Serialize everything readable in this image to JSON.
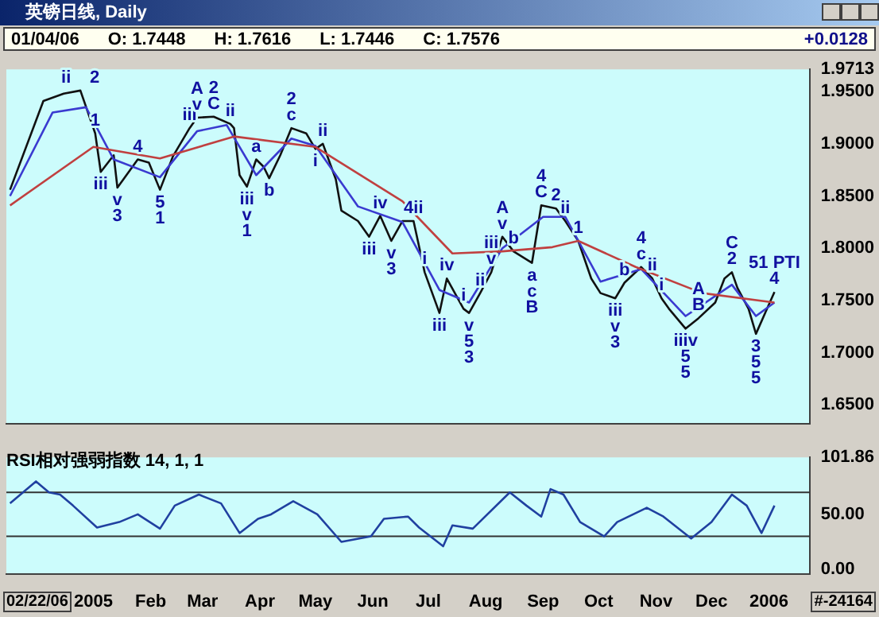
{
  "chart_data": [
    {
      "type": "line",
      "title": "英镑日线, Daily",
      "annotations": [
        "01/04/06",
        "O: 1.7448",
        "H: 1.7616",
        "L: 1.7446",
        "C: 1.7576",
        "+0.0128",
        {
          "text": "1",
          "x": "2005-01-02",
          "y": 1.91
        },
        {
          "text": "ii",
          "x": "2004-12-25",
          "y": 1.951
        },
        {
          "text": "2",
          "x": "2004-12-25",
          "y": 1.951
        },
        {
          "text": "iii",
          "x": "2005-01-05",
          "y": 1.873
        },
        {
          "text": "v",
          "x": "2005-01-14",
          "y": 1.858
        },
        {
          "text": "3",
          "x": "2005-01-14",
          "y": 1.858
        },
        {
          "text": "4",
          "x": "2005-01-25",
          "y": 1.885
        },
        {
          "text": "5",
          "x": "2005-02-06",
          "y": 1.856
        },
        {
          "text": "1",
          "x": "2005-02-06",
          "y": 1.856
        },
        {
          "text": "iii",
          "x": "2005-02-22",
          "y": 1.915
        },
        {
          "text": "v",
          "x": "2005-02-26",
          "y": 1.925
        },
        {
          "text": "A",
          "x": "2005-02-26",
          "y": 1.925
        },
        {
          "text": "C",
          "x": "2005-03-07",
          "y": 1.926
        },
        {
          "text": "2",
          "x": "2005-03-07",
          "y": 1.926
        },
        {
          "text": "ii",
          "x": "2005-03-16",
          "y": 1.919
        },
        {
          "text": "iii",
          "x": "2005-03-25",
          "y": 1.859
        },
        {
          "text": "v",
          "x": "2005-03-25",
          "y": 1.859
        },
        {
          "text": "1",
          "x": "2005-03-25",
          "y": 1.859
        },
        {
          "text": "a",
          "x": "2005-03-30",
          "y": 1.885
        },
        {
          "text": "b",
          "x": "2005-04-06",
          "y": 1.867
        },
        {
          "text": "c",
          "x": "2005-04-18",
          "y": 1.915
        },
        {
          "text": "2",
          "x": "2005-04-18",
          "y": 1.915
        },
        {
          "text": "i",
          "x": "2005-05-01",
          "y": 1.895
        },
        {
          "text": "ii",
          "x": "2005-05-05",
          "y": 1.9
        },
        {
          "text": "iii",
          "x": "2005-05-30",
          "y": 1.811
        },
        {
          "text": "iv",
          "x": "2005-06-05",
          "y": 1.831
        },
        {
          "text": "v",
          "x": "2005-06-11",
          "y": 1.807
        },
        {
          "text": "3",
          "x": "2005-06-11",
          "y": 1.807
        },
        {
          "text": "4ii",
          "x": "2005-06-23",
          "y": 1.826
        },
        {
          "text": "i",
          "x": "2005-06-29",
          "y": 1.777
        },
        {
          "text": "iii",
          "x": "2005-07-07",
          "y": 1.738
        },
        {
          "text": "iv",
          "x": "2005-07-11",
          "y": 1.771
        },
        {
          "text": "i",
          "x": "2005-07-20",
          "y": 1.742
        },
        {
          "text": "v",
          "x": "2005-07-23",
          "y": 1.738
        },
        {
          "text": "5",
          "x": "2005-07-23",
          "y": 1.738
        },
        {
          "text": "3",
          "x": "2005-07-23",
          "y": 1.738
        },
        {
          "text": "ii",
          "x": "2005-07-29",
          "y": 1.757
        },
        {
          "text": "v",
          "x": "2005-08-04",
          "y": 1.777
        },
        {
          "text": "iii",
          "x": "2005-08-04",
          "y": 1.777
        },
        {
          "text": "v",
          "x": "2005-08-10",
          "y": 1.811
        },
        {
          "text": "A",
          "x": "2005-08-10",
          "y": 1.811
        },
        {
          "text": "b",
          "x": "2005-08-16",
          "y": 1.797
        },
        {
          "text": "a",
          "x": "2005-08-26",
          "y": 1.786
        },
        {
          "text": "c",
          "x": "2005-08-26",
          "y": 1.786
        },
        {
          "text": "B",
          "x": "2005-08-26",
          "y": 1.786
        },
        {
          "text": "C",
          "x": "2005-08-31",
          "y": 1.841
        },
        {
          "text": "4",
          "x": "2005-08-31",
          "y": 1.841
        },
        {
          "text": "2",
          "x": "2005-09-08",
          "y": 1.838
        },
        {
          "text": "ii",
          "x": "2005-09-13",
          "y": 1.826
        },
        {
          "text": "1",
          "x": "2005-09-20",
          "y": 1.807
        },
        {
          "text": "iii",
          "x": "2005-10-10",
          "y": 1.752
        },
        {
          "text": "v",
          "x": "2005-10-10",
          "y": 1.752
        },
        {
          "text": "3",
          "x": "2005-10-10",
          "y": 1.752
        },
        {
          "text": "b",
          "x": "2005-10-15",
          "y": 1.767
        },
        {
          "text": "c",
          "x": "2005-10-24",
          "y": 1.782
        },
        {
          "text": "4",
          "x": "2005-10-24",
          "y": 1.782
        },
        {
          "text": "ii",
          "x": "2005-10-30",
          "y": 1.771
        },
        {
          "text": "i",
          "x": "2005-11-04",
          "y": 1.752
        },
        {
          "text": "B",
          "x": "2005-11-24",
          "y": 1.733
        },
        {
          "text": "iiiv",
          "x": "2005-11-17",
          "y": 1.723
        },
        {
          "text": "5",
          "x": "2005-11-17",
          "y": 1.723
        },
        {
          "text": "5",
          "x": "2005-11-17",
          "y": 1.723
        },
        {
          "text": "A",
          "x": "2005-11-24",
          "y": 1.733
        },
        {
          "text": "2",
          "x": "2005-12-12",
          "y": 1.777
        },
        {
          "text": "C",
          "x": "2005-12-12",
          "y": 1.777
        },
        {
          "text": "3",
          "x": "2005-12-25",
          "y": 1.718
        },
        {
          "text": "5",
          "x": "2005-12-25",
          "y": 1.718
        },
        {
          "text": "5",
          "x": "2005-12-25",
          "y": 1.718
        },
        {
          "text": "4",
          "x": "2006-01-04",
          "y": 1.758
        },
        {
          "text": "51 PTI",
          "x": "2006-01-04",
          "y": 1.758
        }
      ],
      "series": [
        {
          "color": "#c04040",
          "x": [
            "2004-11-17",
            "2005-01-01",
            "2005-02-06",
            "2005-03-18",
            "2005-05-01",
            "2005-06-17",
            "2005-07-14",
            "2005-08-10",
            "2005-09-06",
            "2005-09-20",
            "2005-10-21",
            "2005-11-26",
            "2006-01-04"
          ],
          "values": [
            1.841,
            1.897,
            1.886,
            1.907,
            1.897,
            1.845,
            1.795,
            1.797,
            1.801,
            1.807,
            1.782,
            1.757,
            1.748
          ]
        },
        {
          "color": "#3a3ad0",
          "x": [
            "2004-11-17",
            "2004-12-10",
            "2004-12-28",
            "2005-01-12",
            "2005-02-06",
            "2005-02-26",
            "2005-03-14",
            "2005-03-30",
            "2005-04-18",
            "2005-05-01",
            "2005-05-24",
            "2005-06-17",
            "2005-07-07",
            "2005-07-23",
            "2005-08-10",
            "2005-09-01",
            "2005-09-13",
            "2005-10-02",
            "2005-10-24",
            "2005-11-17",
            "2005-12-12",
            "2005-12-25",
            "2006-01-04"
          ],
          "values": [
            1.85,
            1.93,
            1.935,
            1.885,
            1.868,
            1.912,
            1.918,
            1.87,
            1.905,
            1.898,
            1.84,
            1.825,
            1.76,
            1.748,
            1.8,
            1.83,
            1.83,
            1.768,
            1.78,
            1.735,
            1.765,
            1.735,
            1.748
          ]
        },
        {
          "color": "#111111",
          "x": [
            "2004-11-17",
            "2004-12-05",
            "2004-12-16",
            "2004-12-25",
            "2005-01-02",
            "2005-01-05",
            "2005-01-12",
            "2005-01-14",
            "2005-01-25",
            "2005-01-31",
            "2005-02-06",
            "2005-02-13",
            "2005-02-22",
            "2005-02-26",
            "2005-03-07",
            "2005-03-16",
            "2005-03-18",
            "2005-03-21",
            "2005-03-25",
            "2005-03-30",
            "2005-04-03",
            "2005-04-06",
            "2005-04-12",
            "2005-04-18",
            "2005-04-26",
            "2005-05-01",
            "2005-05-05",
            "2005-05-12",
            "2005-05-15",
            "2005-05-24",
            "2005-05-30",
            "2005-06-05",
            "2005-06-11",
            "2005-06-17",
            "2005-06-23",
            "2005-06-29",
            "2005-07-07",
            "2005-07-11",
            "2005-07-20",
            "2005-07-23",
            "2005-07-29",
            "2005-08-04",
            "2005-08-10",
            "2005-08-16",
            "2005-08-26",
            "2005-08-31",
            "2005-09-08",
            "2005-09-13",
            "2005-09-20",
            "2005-09-27",
            "2005-10-02",
            "2005-10-10",
            "2005-10-15",
            "2005-10-24",
            "2005-10-30",
            "2005-11-04",
            "2005-11-08",
            "2005-11-17",
            "2005-11-24",
            "2005-12-03",
            "2005-12-08",
            "2005-12-12",
            "2005-12-15",
            "2005-12-21",
            "2005-12-25",
            "2005-12-30",
            "2006-01-04"
          ],
          "values": [
            1.856,
            1.941,
            1.948,
            1.951,
            1.91,
            1.873,
            1.889,
            1.858,
            1.885,
            1.882,
            1.856,
            1.888,
            1.915,
            1.925,
            1.926,
            1.919,
            1.915,
            1.87,
            1.859,
            1.885,
            1.878,
            1.867,
            1.889,
            1.915,
            1.91,
            1.895,
            1.9,
            1.866,
            1.836,
            1.826,
            1.811,
            1.831,
            1.807,
            1.826,
            1.826,
            1.777,
            1.738,
            1.771,
            1.742,
            1.738,
            1.757,
            1.777,
            1.811,
            1.797,
            1.786,
            1.841,
            1.838,
            1.826,
            1.807,
            1.771,
            1.757,
            1.752,
            1.767,
            1.782,
            1.771,
            1.752,
            1.742,
            1.723,
            1.733,
            1.748,
            1.771,
            1.777,
            1.762,
            1.742,
            1.718,
            1.738,
            1.758
          ]
        }
      ],
      "xlim": [
        "2004-11-15",
        "2006-01-23"
      ],
      "ylim": [
        1.632,
        1.9713
      ],
      "yticks": [
        {
          "value": 1.65,
          "label": "1.6500"
        },
        {
          "value": 1.7,
          "label": "1.7000"
        },
        {
          "value": 1.75,
          "label": "1.7500"
        },
        {
          "value": 1.8,
          "label": "1.8000"
        },
        {
          "value": 1.85,
          "label": "1.8500"
        },
        {
          "value": 1.9,
          "label": "1.9000"
        },
        {
          "value": 1.95,
          "label": "1.9500"
        },
        {
          "value": 1.9713,
          "label": "1.9713"
        }
      ],
      "tick_labels": "y"
    },
    {
      "type": "line",
      "title": "RSI相对强弱指数 14, 1, 1",
      "annotations": [
        "02/22/06",
        "#-24164"
      ],
      "series": [
        {
          "color": "#2040a0",
          "x": [
            "2004-11-17",
            "2004-12-01",
            "2004-12-08",
            "2004-12-14",
            "2004-12-21",
            "2005-01-03",
            "2005-01-15",
            "2005-01-25",
            "2005-02-06",
            "2005-02-14",
            "2005-02-27",
            "2005-03-11",
            "2005-03-21",
            "2005-03-31",
            "2005-04-07",
            "2005-04-19",
            "2005-05-02",
            "2005-05-15",
            "2005-05-31",
            "2005-06-07",
            "2005-06-20",
            "2005-06-26",
            "2005-07-09",
            "2005-07-14",
            "2005-07-25",
            "2005-08-14",
            "2005-08-23",
            "2005-08-31",
            "2005-09-05",
            "2005-09-12",
            "2005-09-21",
            "2005-10-04",
            "2005-10-11",
            "2005-10-27",
            "2005-11-05",
            "2005-11-20",
            "2005-12-01",
            "2005-12-12",
            "2005-12-20",
            "2005-12-28",
            "2006-01-04"
          ],
          "values": [
            60,
            80,
            70,
            68,
            58,
            38,
            43,
            50,
            37,
            58,
            68,
            60,
            33,
            46,
            50,
            62,
            50,
            25,
            30,
            46,
            48,
            38,
            21,
            40,
            37,
            70,
            58,
            48,
            73,
            68,
            43,
            30,
            43,
            56,
            48,
            28,
            43,
            68,
            58,
            33,
            58
          ]
        }
      ],
      "ref_lines": [
        {
          "axis": "y",
          "value": 70,
          "color": "#333333"
        },
        {
          "axis": "y",
          "value": 30,
          "color": "#333333"
        }
      ],
      "xlim": [
        "2004-11-15",
        "2006-01-23"
      ],
      "xticks": [
        {
          "value": "2005-01",
          "label": "2005"
        },
        {
          "value": "2005-02",
          "label": "Feb"
        },
        {
          "value": "2005-03",
          "label": "Mar"
        },
        {
          "value": "2005-04",
          "label": "Apr"
        },
        {
          "value": "2005-05",
          "label": "May"
        },
        {
          "value": "2005-06",
          "label": "Jun"
        },
        {
          "value": "2005-07",
          "label": "Jul"
        },
        {
          "value": "2005-08",
          "label": "Aug"
        },
        {
          "value": "2005-09",
          "label": "Sep"
        },
        {
          "value": "2005-10",
          "label": "Oct"
        },
        {
          "value": "2005-11",
          "label": "Nov"
        },
        {
          "value": "2005-12",
          "label": "Dec"
        },
        {
          "value": "2006-01",
          "label": "2006"
        }
      ],
      "ylim": [
        -4,
        101.86
      ],
      "yticks": [
        {
          "value": 0,
          "label": "0.00"
        },
        {
          "value": 50,
          "label": "50.00"
        },
        {
          "value": 101.86,
          "label": "101.86"
        }
      ]
    }
  ]
}
